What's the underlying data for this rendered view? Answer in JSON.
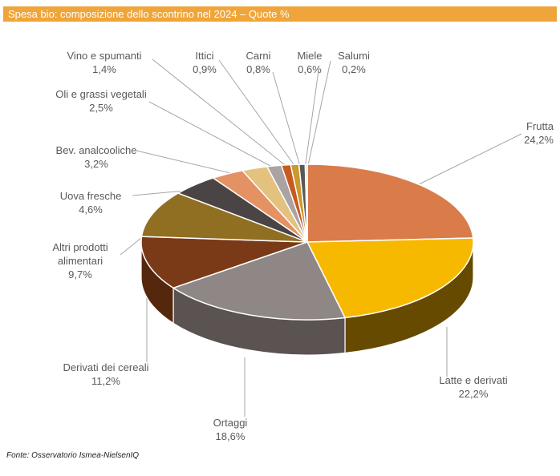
{
  "header": {
    "title": "Spesa bio: composizione dello scontrino nel 2024 – Quote %"
  },
  "source": "Fonte: Osservatorio Ismea-NielsenIQ",
  "chart_data": {
    "type": "pie",
    "style": "3d",
    "title": "Spesa bio: composizione dello scontrino nel 2024 – Quote %",
    "unit": "%",
    "slices": [
      {
        "name": "Frutta",
        "value": 24.2,
        "label": "24,2%",
        "color": "#D97C4A",
        "side": "#8a4a26"
      },
      {
        "name": "Latte e derivati",
        "value": 22.2,
        "label": "22,2%",
        "color": "#F7B900",
        "side": "#654a00"
      },
      {
        "name": "Ortaggi",
        "value": 18.6,
        "label": "18,6%",
        "color": "#8E8786",
        "side": "#5a5352"
      },
      {
        "name": "Derivati dei cereali",
        "value": 11.2,
        "label": "11,2%",
        "color": "#7A3A17",
        "side": "#55270d"
      },
      {
        "name": "Altri prodotti alimentari",
        "value": 9.7,
        "label": "9,7%",
        "color": "#906E22",
        "side": "#5e4714"
      },
      {
        "name": "Uova fresche",
        "value": 4.6,
        "label": "4,6%",
        "color": "#4B4444",
        "side": "#2f2a2a"
      },
      {
        "name": "Bev. analcooliche",
        "value": 3.2,
        "label": "3,2%",
        "color": "#E49264",
        "side": "#9a5d3c"
      },
      {
        "name": "Oli e grassi vegetali",
        "value": 2.5,
        "label": "2,5%",
        "color": "#E2C27E",
        "side": "#9c8350"
      },
      {
        "name": "Vino e spumanti",
        "value": 1.4,
        "label": "1,4%",
        "color": "#A9A3A3",
        "side": "#716c6c"
      },
      {
        "name": "Ittici",
        "value": 0.9,
        "label": "0,9%",
        "color": "#C95A1F",
        "side": "#853a12"
      },
      {
        "name": "Carni",
        "value": 0.8,
        "label": "0,8%",
        "color": "#C99A2E",
        "side": "#86661c"
      },
      {
        "name": "Miele",
        "value": 0.6,
        "label": "0,6%",
        "color": "#5B5757",
        "side": "#3a3737"
      },
      {
        "name": "Salumi",
        "value": 0.2,
        "label": "0,2%",
        "color": "#D9D2C6",
        "side": "#999"
      }
    ]
  }
}
